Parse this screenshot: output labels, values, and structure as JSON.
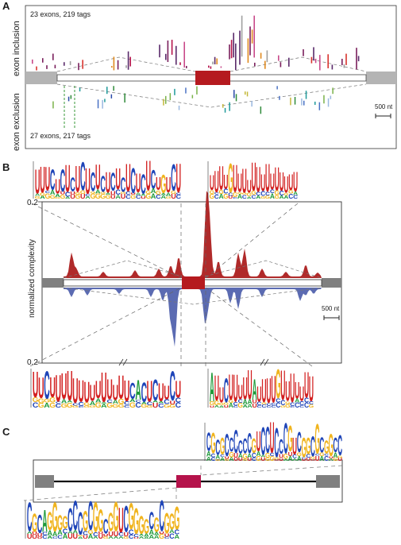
{
  "panels": {
    "a": {
      "letter": "A",
      "top_count": "23 exons, 219 tags",
      "bottom_count": "27 exons, 217 tags",
      "label_inclusion": "exon inclusion",
      "label_exclusion": "exon exclusion",
      "scale_bar": "500 nt"
    },
    "b": {
      "letter": "B",
      "ylabel": "normalized complexity",
      "tick_top": "0.2",
      "tick_bottom": "0.2",
      "scale_bar": "500 nt"
    },
    "c": {
      "letter": "C"
    }
  },
  "colors": {
    "exon_red": "#b51a1f",
    "exon_magenta": "#b5134b",
    "flank_gray": "#b4b4b4",
    "dark_gray": "#808080",
    "red_area": "#b02a2a",
    "blue_area": "#5b6bb2",
    "logo_a": "#1f9a3a",
    "logo_c": "#1f45b8",
    "logo_g": "#f0b41e",
    "logo_u": "#d21f1f"
  },
  "logos": {
    "b_top_left": "UUUCUCUCUCUCUCUCUCUCUCUCUGUCU",
    "b_top_right": "UUUUGUUUUUUUUUUUUUU",
    "b_bottom_left": "UUCUUUUUUUUUUUUUUCACUCUUCU",
    "b_bottom_right": "AUUCUUUUUAUUUUGUUUUUUU",
    "c_top_right": "CGCGCCCCCCGUCCUCCCGUCGGCGCGGCC",
    "c_bottom_left": "CGCAGGGGCCCGCGGCGGUCGGGGCGCGGG"
  }
}
